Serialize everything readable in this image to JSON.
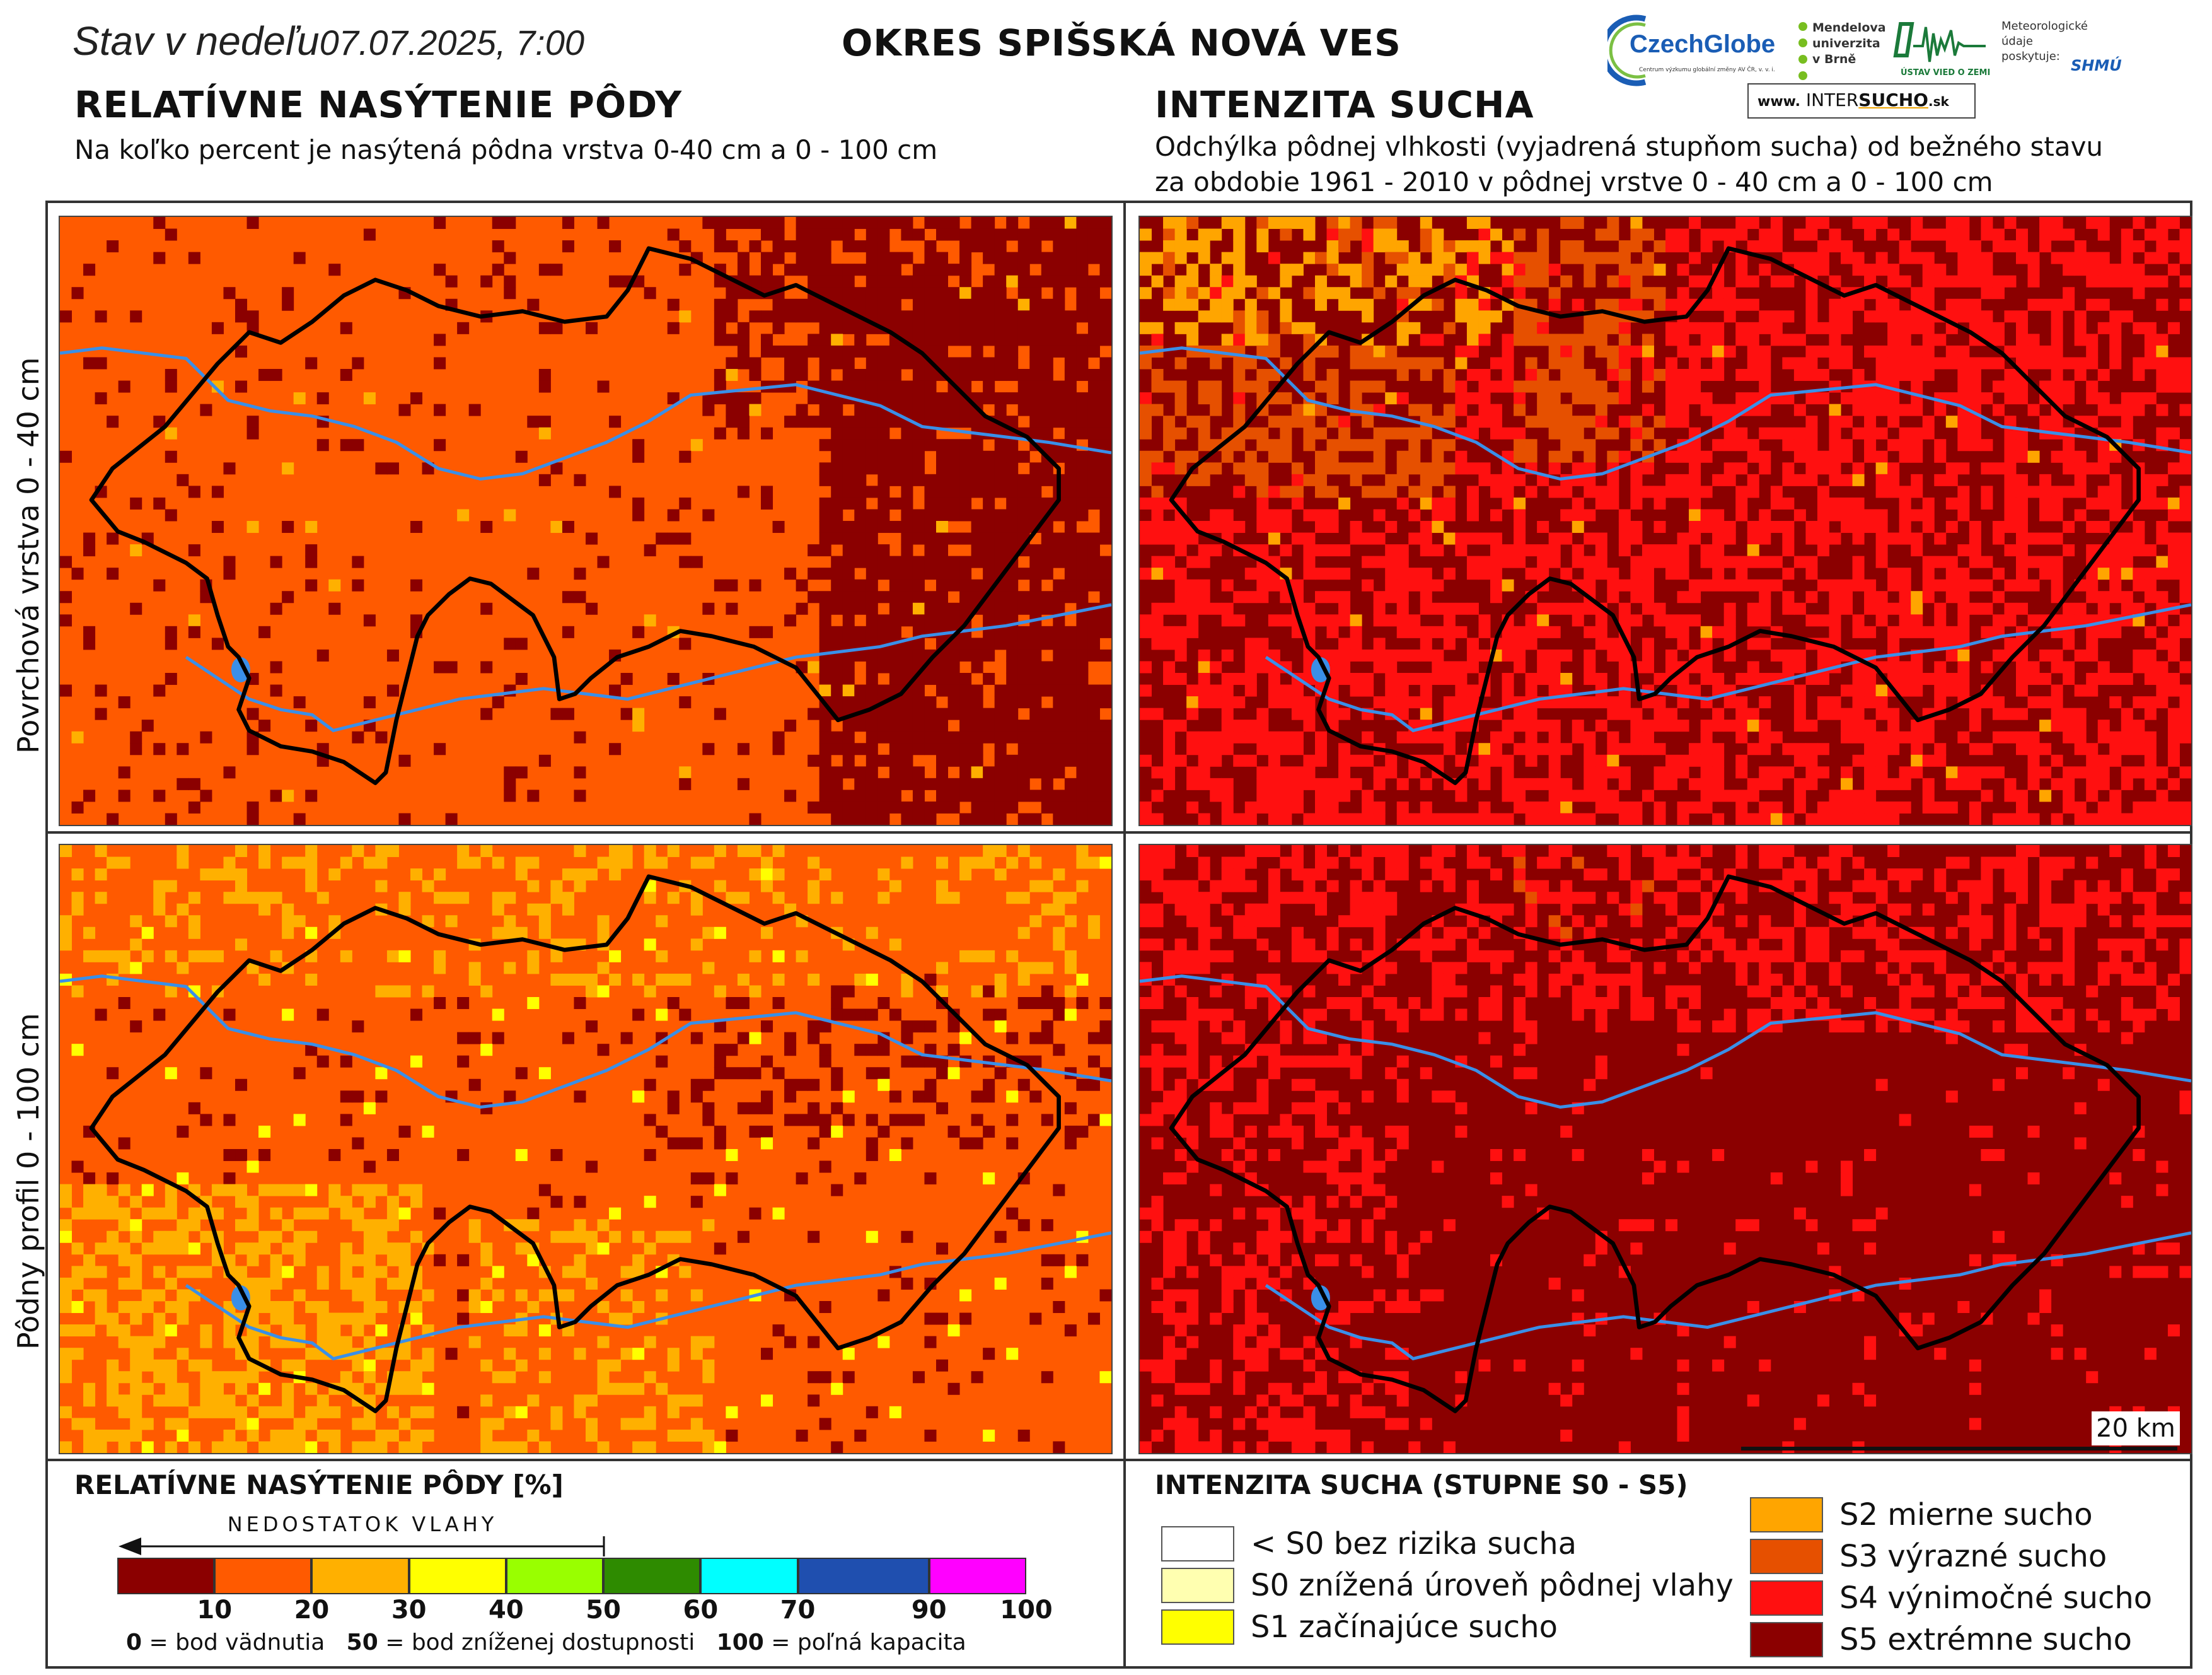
{
  "header": {
    "status_prefix": "Stav v nedeľu",
    "datetime": "07.07.2025, 7:00",
    "district": "OKRES  SPIŠSKÁ NOVÁ VES"
  },
  "left_section": {
    "title": "RELATÍVNE NASÝTENIE PÔDY",
    "subtitle": "Na koľko percent je nasýtená pôdna vrstva 0-40 cm a 0 - 100 cm"
  },
  "right_section": {
    "title": "INTENZITA SUCHA",
    "subtitle_line1": "Odchýlka pôdnej vlhkosti (vyjadrená stupňom sucha) od bežného stavu",
    "subtitle_line2": "za obdobie 1961 - 2010 v pôdnej vrstve 0 - 40 cm a 0 - 100 cm"
  },
  "logos": {
    "czechglobe": "CzechGlobe",
    "czechglobe_sub": "Centrum výzkumu globální změny AV ČR, v. v. i.",
    "mendel_line1": "Mendelova",
    "mendel_line2": "univerzita",
    "mendel_line3": "v Brně",
    "ustav": "ÚSTAV VIED O ZEMI",
    "meteo_line1": "Meteorologické",
    "meteo_line2": "údaje",
    "meteo_line3": "poskytuje:",
    "shmu": "SHMÚ",
    "website_prefix": "www.",
    "website_inter": "INTER",
    "website_sucho": "SUCHO",
    "website_suffix": ".sk"
  },
  "row_labels": {
    "top": "Povrchová vrstva 0 - 40 cm",
    "bottom": "Pôdny profil 0 - 100 cm"
  },
  "scale_bar_label": "20 km",
  "colors": {
    "sat_10": "#8B0000",
    "sat_20": "#FF5A00",
    "sat_30": "#FFB000",
    "sat_40": "#FFFF00",
    "sat_50": "#99FF00",
    "sat_60": "#2E8B00",
    "sat_70": "#00FFFF",
    "sat_90": "#1F4FAF",
    "sat_100": "#FF00FF",
    "s_none": "#FFFFFF",
    "s0": "#FFFFB0",
    "s1": "#FFFF00",
    "s2": "#FFA500",
    "s3": "#E65000",
    "s4": "#FF1010",
    "s5": "#8B0000",
    "river": "#3A8FE8",
    "border": "#000000"
  },
  "legend_left": {
    "title": "RELATÍVNE NASÝTENIE PÔDY [%]",
    "arrow_label": "NEDOSTATOK VLAHY",
    "ticks": [
      "10",
      "20",
      "30",
      "40",
      "50",
      "60",
      "70",
      "90",
      "100"
    ],
    "note_0_num": "0",
    "note_0_text": " = bod vädnutia",
    "note_50_num": "50",
    "note_50_text": " = bod zníženej dostupnosti",
    "note_100_num": "100",
    "note_100_text": " = poľná kapacita"
  },
  "legend_right": {
    "title": "INTENZITA SUCHA (STUPNE S0 - S5)",
    "items": [
      {
        "label": "< S0 bez rizika sucha",
        "color_key": "s_none"
      },
      {
        "label": "S0 znížená úroveň pôdnej vlahy",
        "color_key": "s0"
      },
      {
        "label": "S1 začínajúce sucho",
        "color_key": "s1"
      },
      {
        "label": "S2 mierne sucho",
        "color_key": "s2"
      },
      {
        "label": "S3 výrazné sucho",
        "color_key": "s3"
      },
      {
        "label": "S4 výnimočné sucho",
        "color_key": "s4"
      },
      {
        "label": "S5 extrémne sucho",
        "color_key": "s5"
      }
    ]
  }
}
